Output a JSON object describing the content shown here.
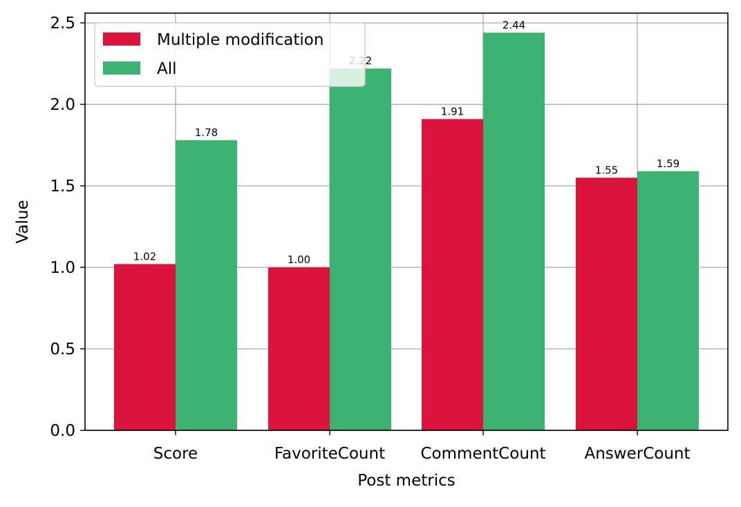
{
  "chart_data": {
    "type": "bar",
    "categories": [
      "Score",
      "FavoriteCount",
      "CommentCount",
      "AnswerCount"
    ],
    "series": [
      {
        "name": "Multiple modification",
        "values": [
          1.02,
          1.0,
          1.91,
          1.55
        ],
        "labels": [
          "1.02",
          "1.00",
          "1.91",
          "1.55"
        ],
        "color": "#DC143C"
      },
      {
        "name": "All",
        "values": [
          1.78,
          2.22,
          2.44,
          1.59
        ],
        "labels": [
          "1.78",
          "2.22",
          "2.44",
          "1.59"
        ],
        "color": "#3CB371"
      }
    ],
    "xlabel": "Post metrics",
    "ylabel": "Value",
    "ylim": [
      0,
      2.56
    ],
    "yticks": [
      0.0,
      0.5,
      1.0,
      1.5,
      2.0,
      2.5
    ],
    "ytick_labels": [
      "0.0",
      "0.5",
      "1.0",
      "1.5",
      "2.0",
      "2.5"
    ],
    "grid": true,
    "legend_position": "top-left",
    "colors": {
      "grid": "#b0b0b0",
      "axis": "#000000"
    }
  }
}
